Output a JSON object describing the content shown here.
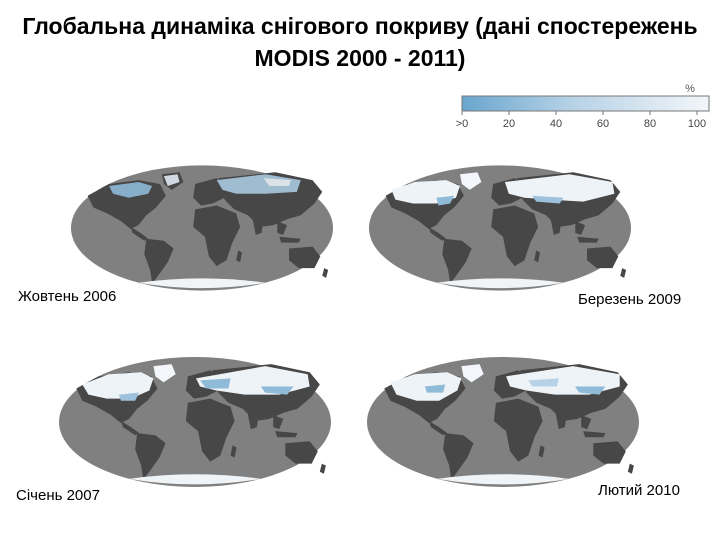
{
  "slide": {
    "title": "Глобальна динаміка снігового покриву (дані спостережень MODIS 2000 - 2011)"
  },
  "legend": {
    "unit": "%",
    "ticks": [
      ">0",
      "20",
      "40",
      "60",
      "80",
      "100"
    ],
    "colors": {
      "low": "#6aa6cf",
      "high": "#f3f6fa"
    }
  },
  "maps": [
    {
      "label": "Жовтень 2006"
    },
    {
      "label": "Березень 2009"
    },
    {
      "label": "Січень 2007"
    },
    {
      "label": "Лютий 2010"
    }
  ],
  "colors": {
    "ocean": "#808080",
    "land": "#474747",
    "snow_light": "#eef3f8",
    "snow_blue": "#8fbad8"
  }
}
